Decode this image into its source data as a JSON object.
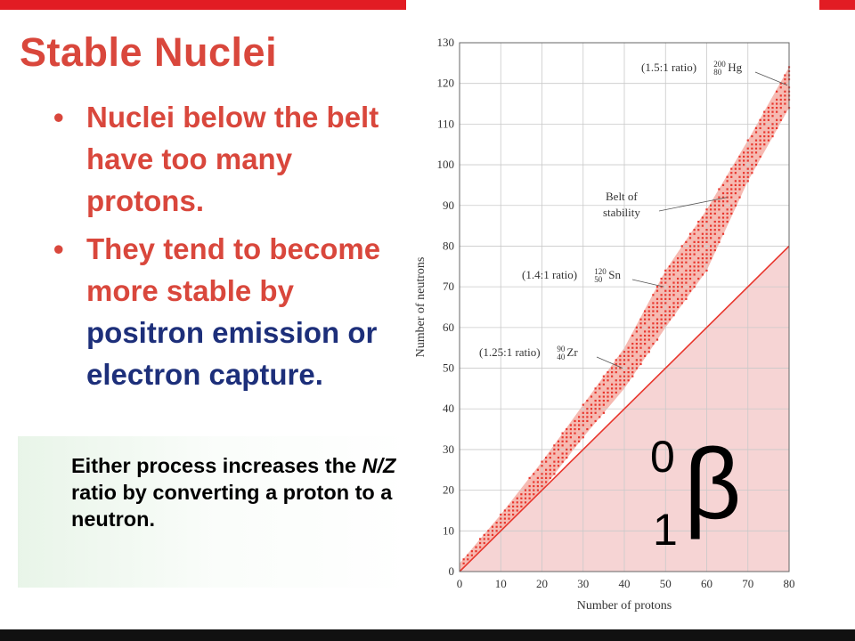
{
  "slide": {
    "title": "Stable Nuclei",
    "bullet_marker": "•",
    "bullets": [
      {
        "text": "Nuclei below the belt have too many protons."
      },
      {
        "text_red": "They tend to become more stable by ",
        "text_blue": "positron emission or electron capture."
      }
    ],
    "note": {
      "part1": "Either process increases the ",
      "italic": "N/Z",
      "part2": " ratio by converting a proton to a neutron."
    },
    "symbol": {
      "superscript": "0",
      "subscript": "1",
      "glyph": "β"
    }
  },
  "colors": {
    "title_red": "#d9473c",
    "emphasis_blue": "#1d2f7a",
    "belt_fill": "#f5b3aa",
    "belt_dots": "#e8352c",
    "region_fill": "#f4cccc",
    "one_to_one_line": "#e8352c",
    "top_bar": "#e21c23"
  },
  "chart_data": {
    "type": "scatter",
    "xlabel": "Number of protons",
    "ylabel": "Number of neutrons",
    "xlim": [
      0,
      80
    ],
    "ylim": [
      0,
      130
    ],
    "x_ticks": [
      0,
      10,
      20,
      30,
      40,
      50,
      60,
      70,
      80
    ],
    "y_ticks": [
      0,
      10,
      20,
      30,
      40,
      50,
      60,
      70,
      80,
      90,
      100,
      110,
      120,
      130
    ],
    "grid": true,
    "belt_of_stability": {
      "lower": [
        [
          0,
          0
        ],
        [
          10,
          10
        ],
        [
          20,
          20
        ],
        [
          30,
          33
        ],
        [
          40,
          45
        ],
        [
          50,
          60
        ],
        [
          60,
          74
        ],
        [
          70,
          96
        ],
        [
          80,
          114
        ]
      ],
      "upper": [
        [
          0,
          2
        ],
        [
          10,
          14
        ],
        [
          20,
          27
        ],
        [
          30,
          41
        ],
        [
          40,
          55
        ],
        [
          50,
          74
        ],
        [
          60,
          89
        ],
        [
          70,
          106
        ],
        [
          80,
          124
        ]
      ]
    },
    "one_to_one_line": [
      [
        0,
        0
      ],
      [
        80,
        80
      ]
    ],
    "annotations": [
      {
        "text": "(1.5:1 ratio)",
        "A": "200",
        "Z": "80",
        "symbol": "Hg",
        "x": 80,
        "y": 120
      },
      {
        "text": "Belt of",
        "text2": "stability",
        "x": 65,
        "y": 92
      },
      {
        "text": "(1.4:1 ratio)",
        "A": "120",
        "Z": "50",
        "symbol": "Sn",
        "x": 50,
        "y": 70
      },
      {
        "text": "(1.25:1 ratio)",
        "A": "90",
        "Z": "40",
        "symbol": "Zr",
        "x": 40,
        "y": 50
      }
    ]
  }
}
